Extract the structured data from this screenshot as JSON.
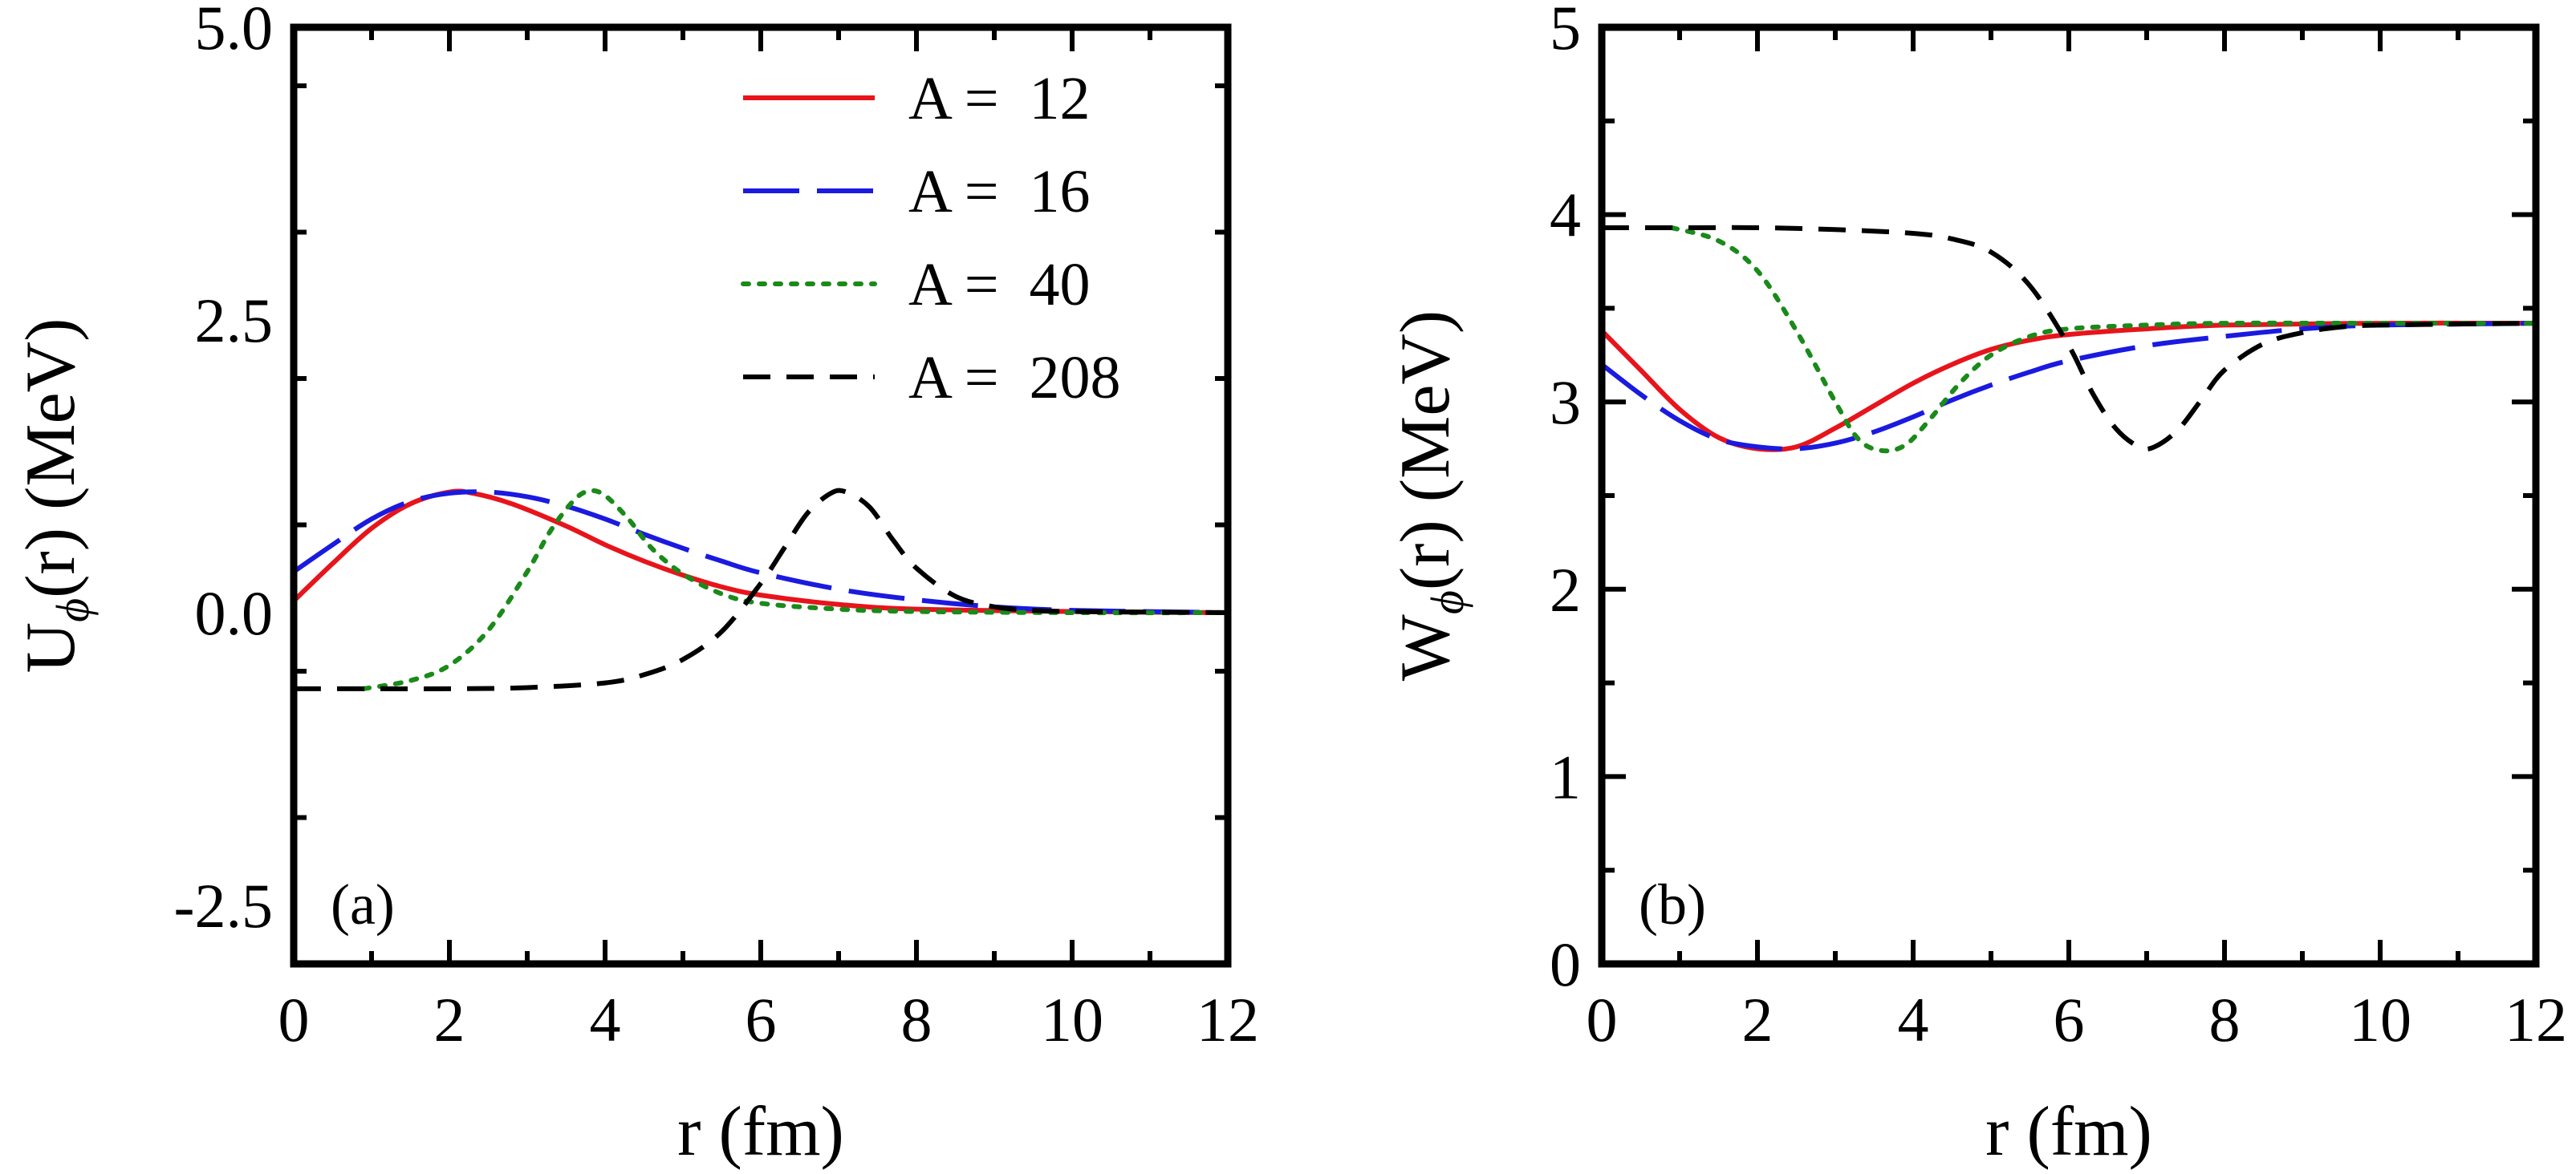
{
  "chart_data": [
    {
      "type": "line",
      "panel_label": "(a)",
      "xlabel": "r (fm)",
      "ylabel": "U(r) (MeV)",
      "ylabel_parts": {
        "main": "U",
        "sub": "ϕ",
        "rest": "(r) (MeV)"
      },
      "xlim": [
        0,
        12
      ],
      "ylim": [
        -3.0,
        5.0
      ],
      "xticks": [
        0,
        2,
        4,
        6,
        8,
        10,
        12
      ],
      "xtick_labels": [
        "0",
        "2",
        "4",
        "6",
        "8",
        "10",
        "12"
      ],
      "yticks": [
        -2.5,
        0.0,
        2.5,
        5.0
      ],
      "ytick_labels": [
        "-2.5",
        "0.0",
        "2.5",
        "5.0"
      ],
      "legend_position": "top-right",
      "series": [
        {
          "name": "A =  12",
          "color": "#e8141b",
          "style": "solid",
          "x": [
            0,
            0.5,
            1,
            1.5,
            2,
            2.3,
            2.8,
            3.5,
            4,
            4.5,
            5,
            5.5,
            6,
            7,
            8,
            10,
            12
          ],
          "y": [
            0.1,
            0.42,
            0.72,
            0.93,
            1.03,
            1.02,
            0.93,
            0.74,
            0.58,
            0.44,
            0.32,
            0.22,
            0.15,
            0.07,
            0.03,
            0.01,
            0.0
          ]
        },
        {
          "name": "A =  16",
          "color": "#1a1ae0",
          "style": "dashed",
          "x": [
            0,
            0.5,
            1,
            1.5,
            2,
            2.5,
            3,
            3.5,
            4,
            4.5,
            5,
            5.5,
            6,
            7,
            8,
            9,
            10,
            12
          ],
          "y": [
            0.35,
            0.58,
            0.8,
            0.95,
            1.02,
            1.03,
            0.99,
            0.91,
            0.8,
            0.67,
            0.55,
            0.44,
            0.34,
            0.2,
            0.11,
            0.05,
            0.02,
            0.0
          ]
        },
        {
          "name": "A =  40",
          "color": "#1a8a1a",
          "style": "dotted",
          "x": [
            0.9,
            1.5,
            2,
            2.5,
            3,
            3.3,
            3.6,
            3.8,
            4,
            4.3,
            4.6,
            5,
            5.5,
            6,
            7,
            8,
            10,
            12
          ],
          "y": [
            -0.65,
            -0.58,
            -0.45,
            -0.15,
            0.35,
            0.7,
            0.96,
            1.04,
            1.0,
            0.8,
            0.55,
            0.33,
            0.16,
            0.08,
            0.03,
            0.01,
            0.0,
            0.0
          ]
        },
        {
          "name": "A =  208",
          "color": "#000000",
          "style": "dashed-short",
          "x": [
            0,
            1,
            2,
            3,
            4,
            4.5,
            5,
            5.5,
            6,
            6.3,
            6.6,
            6.9,
            7.1,
            7.4,
            7.7,
            8,
            8.5,
            9,
            9.5,
            10,
            12
          ],
          "y": [
            -0.65,
            -0.65,
            -0.65,
            -0.64,
            -0.6,
            -0.53,
            -0.4,
            -0.16,
            0.25,
            0.55,
            0.85,
            1.02,
            1.03,
            0.9,
            0.62,
            0.38,
            0.14,
            0.05,
            0.02,
            0.01,
            0.0
          ]
        }
      ]
    },
    {
      "type": "line",
      "panel_label": "(b)",
      "xlabel": "r (fm)",
      "ylabel": "W(r) (MeV)",
      "ylabel_parts": {
        "main": "W",
        "sub": "ϕ",
        "rest": "(r) (MeV)"
      },
      "xlim": [
        0,
        12
      ],
      "ylim": [
        0,
        5
      ],
      "xticks": [
        0,
        2,
        4,
        6,
        8,
        10,
        12
      ],
      "xtick_labels": [
        "0",
        "2",
        "4",
        "6",
        "8",
        "10",
        "12"
      ],
      "yticks": [
        0,
        1,
        2,
        3,
        4,
        5
      ],
      "ytick_labels": [
        "0",
        "1",
        "2",
        "3",
        "4",
        "5"
      ],
      "series": [
        {
          "name": "A =  12",
          "color": "#e8141b",
          "style": "solid",
          "x": [
            0,
            0.5,
            1,
            1.5,
            2,
            2.5,
            3,
            3.5,
            4,
            4.5,
            5,
            5.5,
            6,
            7,
            8,
            10,
            12
          ],
          "y": [
            3.38,
            3.17,
            2.96,
            2.81,
            2.75,
            2.76,
            2.86,
            2.98,
            3.1,
            3.2,
            3.28,
            3.33,
            3.36,
            3.39,
            3.41,
            3.42,
            3.42
          ]
        },
        {
          "name": "A =  16",
          "color": "#1a1ae0",
          "style": "dashed",
          "x": [
            0,
            0.5,
            1,
            1.5,
            2,
            2.5,
            3,
            3.5,
            4,
            4.5,
            5,
            5.5,
            6,
            7,
            8,
            9,
            10,
            12
          ],
          "y": [
            3.2,
            3.04,
            2.9,
            2.8,
            2.76,
            2.75,
            2.78,
            2.84,
            2.92,
            3.01,
            3.09,
            3.16,
            3.22,
            3.3,
            3.35,
            3.39,
            3.41,
            3.42
          ]
        },
        {
          "name": "A =  40",
          "color": "#1a8a1a",
          "style": "dotted",
          "x": [
            0.9,
            1.5,
            2,
            2.5,
            3,
            3.3,
            3.6,
            3.9,
            4.2,
            4.6,
            5,
            5.5,
            6,
            7,
            8,
            10,
            12
          ],
          "y": [
            3.93,
            3.86,
            3.7,
            3.38,
            3.0,
            2.8,
            2.74,
            2.77,
            2.9,
            3.1,
            3.25,
            3.35,
            3.39,
            3.41,
            3.42,
            3.42,
            3.42
          ]
        },
        {
          "name": "A =  208",
          "color": "#000000",
          "style": "dashed-short",
          "x": [
            0,
            1,
            2,
            3,
            4,
            4.5,
            5,
            5.5,
            6,
            6.3,
            6.6,
            6.9,
            7.1,
            7.4,
            7.7,
            8,
            8.5,
            9,
            9.5,
            10,
            12
          ],
          "y": [
            3.93,
            3.93,
            3.93,
            3.92,
            3.9,
            3.87,
            3.8,
            3.62,
            3.3,
            3.05,
            2.86,
            2.76,
            2.76,
            2.85,
            3.01,
            3.17,
            3.31,
            3.37,
            3.4,
            3.41,
            3.42
          ]
        }
      ]
    }
  ]
}
